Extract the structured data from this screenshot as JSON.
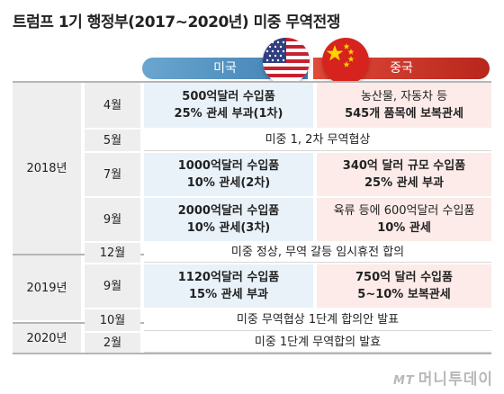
{
  "title": "트럼프 1기 행정부(2017~2020년) 미중 무역전쟁",
  "header": {
    "us": "미국",
    "cn": "중국"
  },
  "rows": [
    {
      "year": "2018년",
      "month": "4월",
      "us": [
        "500억달러 수입품",
        "25% 관세 부과(1차)"
      ],
      "cn": [
        "농산물, 자동차 등",
        "545개 품목에 보복관세"
      ]
    },
    {
      "month": "5월",
      "span": "미중 1, 2차 무역협상"
    },
    {
      "month": "7월",
      "us": [
        "1000억달러 수입품",
        "10% 관세(2차)"
      ],
      "cn": [
        "340억 달러 규모 수입품",
        "25% 관세 부과"
      ]
    },
    {
      "month": "9월",
      "us": [
        "2000억달러 수입품",
        "10% 관세(3차)"
      ],
      "cn": [
        "육류 등에 600억달러 수입품",
        "10% 관세"
      ]
    },
    {
      "month": "12월",
      "span": "미중 정상, 무역 갈등 임시휴전 합의"
    },
    {
      "year": "2019년",
      "month": "9월",
      "us": [
        "1120억달러 수입품",
        "15% 관세 부과"
      ],
      "cn": [
        "750억 달러 수입품",
        "5~10% 보복관세"
      ]
    },
    {
      "month": "10월",
      "span": "미중 무역협상 1단계 합의안 발표"
    },
    {
      "year": "2020년",
      "month": "2월",
      "span": "미중 1단계 무역합의 발효"
    }
  ],
  "logo": {
    "mark": "MT",
    "text": "머니투데이"
  }
}
